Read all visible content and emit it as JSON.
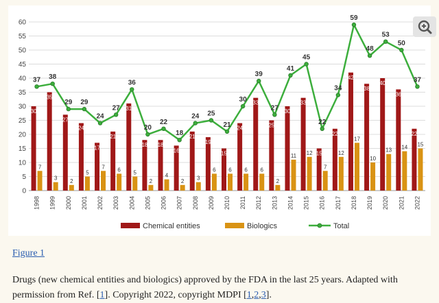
{
  "figure_link": "Figure 1",
  "caption": {
    "part1": "Drugs (new chemical entities and biologics) approved by the FDA in the last 25 years. Adapted with permission from Ref. [",
    "ref1": "1",
    "part2": "]. Copyright 2022, copyright MDPI [",
    "ref2": "1",
    "ref3": "2",
    "ref4": "3",
    "part3": "]."
  },
  "icons": {
    "zoom": "zoom-in-icon"
  },
  "colors": {
    "chemical": "#a01818",
    "biologics": "#d99314",
    "total": "#3cae3c",
    "panel_bg": "#fbf8ef"
  },
  "chart_data": {
    "type": "bar",
    "categories": [
      "1998",
      "1999",
      "2000",
      "2001",
      "2002",
      "2003",
      "2004",
      "2005",
      "2006",
      "2007",
      "2008",
      "2009",
      "2010",
      "2011",
      "2012",
      "2013",
      "2014",
      "2015",
      "2016",
      "2017",
      "2018",
      "2019",
      "2020",
      "2021",
      "2022"
    ],
    "series": [
      {
        "name": "Chemical entities",
        "type": "bar",
        "values": [
          30,
          35,
          27,
          24,
          17,
          21,
          31,
          18,
          18,
          16,
          21,
          19,
          15,
          24,
          33,
          25,
          30,
          33,
          15,
          22,
          42,
          38,
          40,
          36,
          22
        ]
      },
      {
        "name": "Biologics",
        "type": "bar",
        "values": [
          7,
          3,
          2,
          5,
          7,
          6,
          5,
          2,
          4,
          2,
          3,
          6,
          6,
          6,
          6,
          2,
          11,
          12,
          7,
          12,
          17,
          10,
          13,
          14,
          15
        ]
      },
      {
        "name": "Total",
        "type": "line",
        "values": [
          37,
          38,
          29,
          29,
          24,
          27,
          36,
          20,
          22,
          18,
          24,
          25,
          21,
          30,
          39,
          27,
          41,
          45,
          22,
          34,
          59,
          48,
          53,
          50,
          37
        ]
      }
    ],
    "ylim": [
      0,
      60
    ],
    "yticks": [
      0,
      5,
      10,
      15,
      20,
      25,
      30,
      35,
      40,
      45,
      50,
      55,
      60
    ],
    "grid": true,
    "legend": "bottom"
  }
}
